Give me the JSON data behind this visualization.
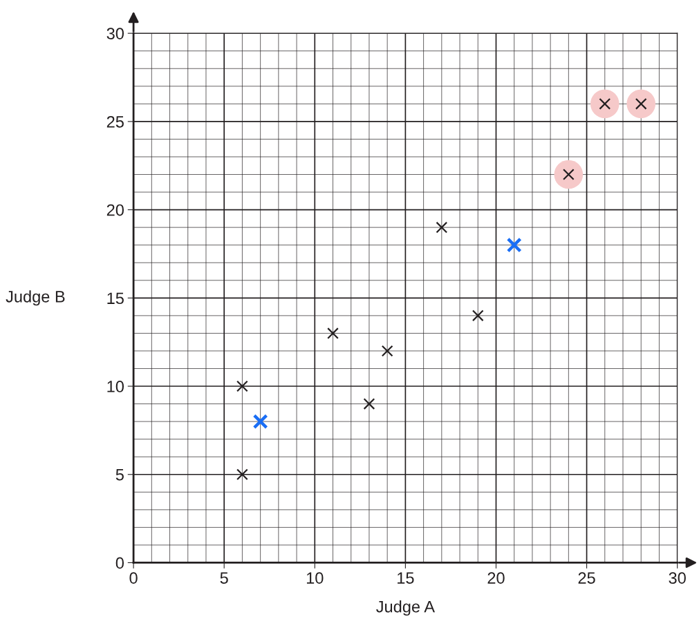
{
  "chart_data": {
    "type": "scatter",
    "xlabel": "Judge A",
    "ylabel": "Judge B",
    "xlim": [
      0,
      30
    ],
    "ylim": [
      0,
      30
    ],
    "xticks": [
      0,
      5,
      10,
      15,
      20,
      25,
      30
    ],
    "yticks": [
      0,
      5,
      10,
      15,
      20,
      25,
      30
    ],
    "grid": true,
    "series": [
      {
        "marker": "circle",
        "color": "#f6c9c9",
        "x": [
          24,
          26,
          28
        ],
        "values": [
          22,
          26,
          26
        ]
      },
      {
        "marker": "cross",
        "color": "#231f20",
        "x": [
          6,
          6,
          11,
          13,
          14,
          17,
          19,
          24,
          26,
          28
        ],
        "values": [
          10,
          5,
          13,
          9,
          12,
          19,
          14,
          22,
          26,
          26
        ]
      },
      {
        "marker": "cross",
        "color": "#1a6ef5",
        "x": [
          7,
          21
        ],
        "values": [
          8,
          18
        ]
      }
    ]
  }
}
